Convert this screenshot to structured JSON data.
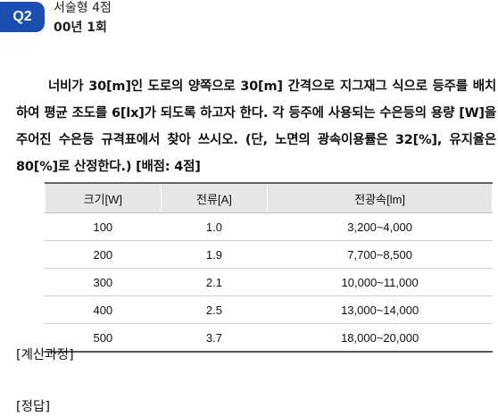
{
  "header": {
    "badge": "Q2",
    "type_label": "서술형 4점",
    "year_label": "00년 1회"
  },
  "question": {
    "text": "너비가 30[m]인 도로의 양쪽으로 30[m] 간격으로 지그재그 식으로 등주를 배치하여 평균 조도를 6[lx]가 되도록 하고자 한다. 각 등주에 사용되는 수은등의 용량 [W]을 주어진 수은등 규격표에서 찾아 쓰시오. (단, 노면의 광속이용률은 32[%], 유지율은 80[%]로 산정한다.) [배점: 4점]"
  },
  "table": {
    "headers": [
      "크기[W]",
      "전류[A]",
      "전광속[lm]"
    ],
    "rows": [
      [
        "100",
        "1.0",
        "3,200~4,000"
      ],
      [
        "200",
        "1.9",
        "7,700~8,500"
      ],
      [
        "300",
        "2.1",
        "10,000~11,000"
      ],
      [
        "400",
        "2.5",
        "13,000~14,000"
      ],
      [
        "500",
        "3.7",
        "18,000~20,000"
      ]
    ]
  },
  "footer": {
    "calc_label": "[계산과정]",
    "answer_label": "[정답]"
  }
}
